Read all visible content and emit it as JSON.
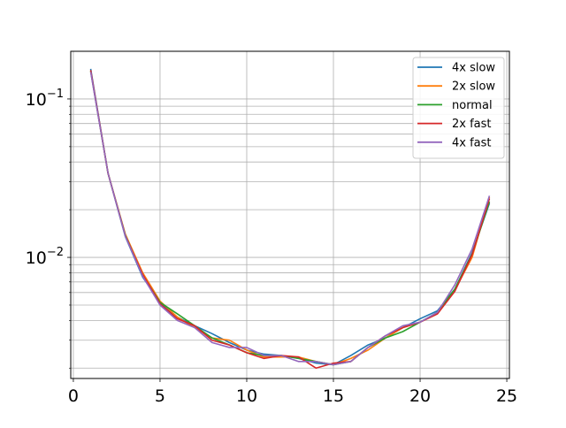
{
  "chart_data": {
    "type": "line",
    "title": "",
    "xlabel": "",
    "ylabel": "",
    "x_scale": "linear",
    "y_scale": "log",
    "xlim": [
      -0.15,
      25.15
    ],
    "ylim": [
      0.00172,
      0.2
    ],
    "x_ticks": [
      0,
      5,
      10,
      15,
      20,
      25
    ],
    "y_major_ticks": [
      {
        "value": 0.1,
        "base": "10",
        "exp": "−1"
      },
      {
        "value": 0.01,
        "base": "10",
        "exp": "−2"
      }
    ],
    "y_minor_ticks": [
      0.002,
      0.003,
      0.004,
      0.005,
      0.006,
      0.007,
      0.008,
      0.009,
      0.02,
      0.03,
      0.04,
      0.05,
      0.06,
      0.07,
      0.08,
      0.09
    ],
    "grid": true,
    "legend_position": "top-right",
    "x": [
      1,
      2,
      3,
      4,
      5,
      6,
      7,
      8,
      9,
      10,
      11,
      12,
      13,
      14,
      15,
      16,
      17,
      18,
      19,
      20,
      21,
      22,
      23,
      24
    ],
    "series": [
      {
        "name": "4x slow",
        "color": "#1f77b4",
        "values": [
          0.155,
          0.034,
          0.0135,
          0.0075,
          0.0052,
          0.0042,
          0.0037,
          0.0033,
          0.0029,
          0.0026,
          0.00245,
          0.0024,
          0.0023,
          0.00215,
          0.0021,
          0.0024,
          0.0028,
          0.0031,
          0.0036,
          0.0041,
          0.0046,
          0.0063,
          0.0107,
          0.022
        ]
      },
      {
        "name": "2x slow",
        "color": "#ff7f0e",
        "values": [
          0.15,
          0.034,
          0.014,
          0.008,
          0.0053,
          0.0042,
          0.0036,
          0.0031,
          0.003,
          0.0026,
          0.00235,
          0.00235,
          0.00235,
          0.0022,
          0.0021,
          0.0023,
          0.0026,
          0.0031,
          0.0036,
          0.0039,
          0.0044,
          0.0062,
          0.01,
          0.024
        ]
      },
      {
        "name": "normal",
        "color": "#2ca02c",
        "values": [
          0.15,
          0.034,
          0.0138,
          0.0077,
          0.0052,
          0.0044,
          0.0037,
          0.0031,
          0.0028,
          0.0025,
          0.0024,
          0.0024,
          0.0023,
          0.0022,
          0.0021,
          0.0022,
          0.0027,
          0.0031,
          0.0034,
          0.0039,
          0.0045,
          0.0063,
          0.0105,
          0.0225
        ]
      },
      {
        "name": "2x fast",
        "color": "#d62728",
        "values": [
          0.152,
          0.034,
          0.0137,
          0.0078,
          0.0051,
          0.0041,
          0.0037,
          0.003,
          0.0028,
          0.0025,
          0.0023,
          0.0024,
          0.00235,
          0.002,
          0.00215,
          0.0022,
          0.0027,
          0.0032,
          0.0036,
          0.0039,
          0.0044,
          0.0061,
          0.0104,
          0.0235
        ]
      },
      {
        "name": "4x fast",
        "color": "#9467bd",
        "values": [
          0.148,
          0.034,
          0.0136,
          0.0076,
          0.005,
          0.004,
          0.0036,
          0.0029,
          0.0027,
          0.0027,
          0.0024,
          0.0024,
          0.0022,
          0.0022,
          0.0021,
          0.0022,
          0.0027,
          0.0032,
          0.0037,
          0.0039,
          0.0045,
          0.0067,
          0.0113,
          0.0245
        ]
      }
    ]
  }
}
